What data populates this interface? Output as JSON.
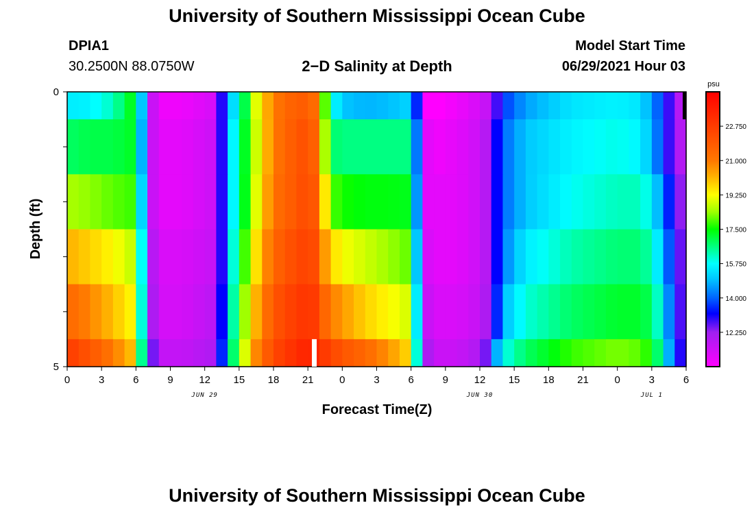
{
  "header": {
    "title": "University of Southern Mississippi Ocean Cube",
    "station_id": "DPIA1",
    "station_coords": "30.2500N  88.0750W",
    "plot_title": "2−D Salinity at Depth",
    "model_start_label": "Model Start Time",
    "model_start_value": "06/29/2021 Hour 03"
  },
  "footer": {
    "title": "University of Southern Mississippi Ocean Cube"
  },
  "colorbar": {
    "unit": "psu",
    "tick_labels": [
      "22.750",
      "21.000",
      "19.250",
      "17.500",
      "15.750",
      "14.000",
      "12.250"
    ],
    "range": [
      10.5,
      24.5
    ],
    "stops": [
      {
        "v": 10.5,
        "c": "#ff00ff"
      },
      {
        "v": 12.25,
        "c": "#a020f0"
      },
      {
        "v": 13.2,
        "c": "#0000ff"
      },
      {
        "v": 14.0,
        "c": "#0064ff"
      },
      {
        "v": 15.0,
        "c": "#00c8ff"
      },
      {
        "v": 15.75,
        "c": "#00ffff"
      },
      {
        "v": 16.5,
        "c": "#00ff90"
      },
      {
        "v": 17.5,
        "c": "#00ff00"
      },
      {
        "v": 18.4,
        "c": "#a0ff00"
      },
      {
        "v": 19.25,
        "c": "#ffff00"
      },
      {
        "v": 20.2,
        "c": "#ffb000"
      },
      {
        "v": 21.0,
        "c": "#ff7800"
      },
      {
        "v": 22.75,
        "c": "#ff3c00"
      },
      {
        "v": 24.5,
        "c": "#ff0000"
      }
    ]
  },
  "chart_data": {
    "type": "heatmap",
    "title": "2−D Salinity at Depth",
    "xlabel": "Forecast Time(Z)",
    "ylabel": "Depth (ft)",
    "unit": "psu",
    "x_range_hours": [
      0,
      54
    ],
    "x_ticks": [
      {
        "h": 0,
        "label": "0"
      },
      {
        "h": 3,
        "label": "3"
      },
      {
        "h": 6,
        "label": "6"
      },
      {
        "h": 9,
        "label": "9"
      },
      {
        "h": 12,
        "label": "12"
      },
      {
        "h": 15,
        "label": "15"
      },
      {
        "h": 18,
        "label": "18"
      },
      {
        "h": 21,
        "label": "21"
      },
      {
        "h": 24,
        "label": "0"
      },
      {
        "h": 27,
        "label": "3"
      },
      {
        "h": 30,
        "label": "6"
      },
      {
        "h": 33,
        "label": "9"
      },
      {
        "h": 36,
        "label": "12"
      },
      {
        "h": 39,
        "label": "15"
      },
      {
        "h": 42,
        "label": "18"
      },
      {
        "h": 45,
        "label": "21"
      },
      {
        "h": 48,
        "label": "0"
      },
      {
        "h": 51,
        "label": "3"
      },
      {
        "h": 54,
        "label": "6"
      }
    ],
    "date_labels": [
      {
        "h": 12,
        "label": "JUN 29"
      },
      {
        "h": 36,
        "label": "JUN 30"
      },
      {
        "h": 51,
        "label": "JUL 1"
      }
    ],
    "y_range_ft": [
      0,
      5
    ],
    "y_tick_labels": [
      {
        "v": 0,
        "label": "0"
      },
      {
        "v": 5,
        "label": "5"
      }
    ],
    "depth_bands_ft": [
      0,
      0.5,
      1.5,
      2.5,
      3.5,
      4.5,
      5
    ],
    "salinity_anchors_hours": [
      0,
      2,
      4,
      6,
      6.5,
      7,
      7.5,
      8.5,
      10,
      13,
      13.5,
      14,
      15,
      16.5,
      18,
      20,
      21,
      22,
      22.5,
      23,
      24,
      26,
      28,
      30,
      30.5,
      31,
      31.5,
      32.5,
      34,
      36,
      37,
      37.5,
      38,
      40,
      44,
      48,
      50,
      51,
      52,
      53,
      54
    ],
    "salinity_psu_by_band": [
      [
        15.5,
        15.6,
        16.2,
        17.6,
        15.0,
        13.2,
        11.5,
        10.8,
        10.8,
        11.3,
        13.0,
        14.6,
        16.0,
        19.0,
        21.0,
        21.8,
        21.8,
        21.0,
        18.0,
        16.0,
        15.0,
        14.8,
        14.9,
        15.2,
        13.5,
        11.5,
        10.5,
        10.5,
        10.8,
        11.3,
        11.8,
        12.8,
        13.6,
        14.6,
        15.4,
        15.6,
        15.4,
        14.5,
        13.5,
        12.2,
        11.5
      ],
      [
        16.8,
        17.0,
        17.0,
        17.3,
        14.8,
        13.0,
        11.5,
        11.0,
        11.0,
        11.5,
        13.0,
        14.8,
        16.5,
        18.8,
        21.0,
        22.0,
        22.2,
        21.2,
        18.5,
        16.8,
        16.6,
        16.6,
        16.6,
        16.6,
        14.2,
        11.8,
        11.0,
        10.8,
        11.0,
        11.5,
        12.2,
        13.2,
        14.0,
        15.0,
        15.6,
        15.9,
        15.6,
        14.8,
        13.5,
        12.2,
        11.6
      ],
      [
        18.5,
        18.3,
        18.0,
        17.8,
        15.2,
        13.0,
        11.5,
        11.0,
        11.0,
        11.5,
        13.0,
        14.8,
        16.5,
        19.0,
        21.2,
        22.0,
        22.4,
        21.5,
        19.5,
        18.0,
        17.6,
        17.4,
        17.4,
        17.3,
        14.5,
        12.0,
        11.0,
        11.0,
        11.0,
        11.5,
        12.2,
        13.2,
        14.0,
        15.0,
        15.8,
        16.2,
        16.2,
        15.6,
        14.2,
        12.7,
        12.0
      ],
      [
        20.2,
        19.8,
        19.3,
        18.6,
        15.8,
        13.5,
        11.8,
        11.2,
        11.2,
        11.6,
        13.0,
        15.0,
        17.0,
        19.6,
        21.5,
        22.4,
        22.6,
        22.0,
        20.5,
        19.8,
        19.2,
        18.8,
        18.4,
        18.0,
        15.0,
        12.3,
        11.2,
        11.0,
        11.0,
        11.5,
        12.2,
        13.2,
        14.2,
        15.5,
        16.3,
        16.7,
        16.7,
        16.2,
        14.8,
        13.0,
        12.2
      ],
      [
        21.5,
        20.8,
        20.0,
        19.2,
        16.0,
        13.6,
        12.0,
        11.3,
        11.3,
        11.8,
        13.2,
        15.2,
        17.5,
        20.2,
        22.0,
        22.8,
        23.0,
        22.6,
        21.5,
        21.0,
        20.5,
        19.8,
        19.3,
        18.8,
        15.5,
        12.8,
        11.5,
        11.2,
        11.2,
        11.6,
        12.4,
        13.5,
        14.8,
        16.0,
        16.8,
        17.2,
        17.2,
        16.8,
        15.5,
        13.2,
        12.3
      ],
      [
        22.8,
        22.0,
        21.0,
        19.8,
        16.5,
        14.2,
        12.5,
        11.6,
        11.6,
        12.0,
        13.5,
        15.5,
        18.0,
        20.8,
        22.4,
        23.2,
        23.5,
        23.3,
        22.8,
        22.5,
        22.0,
        21.5,
        20.6,
        19.6,
        16.0,
        13.5,
        12.0,
        11.5,
        11.5,
        12.0,
        13.0,
        14.8,
        15.8,
        16.8,
        17.8,
        18.2,
        18.0,
        17.5,
        16.0,
        13.5,
        12.5
      ]
    ]
  }
}
